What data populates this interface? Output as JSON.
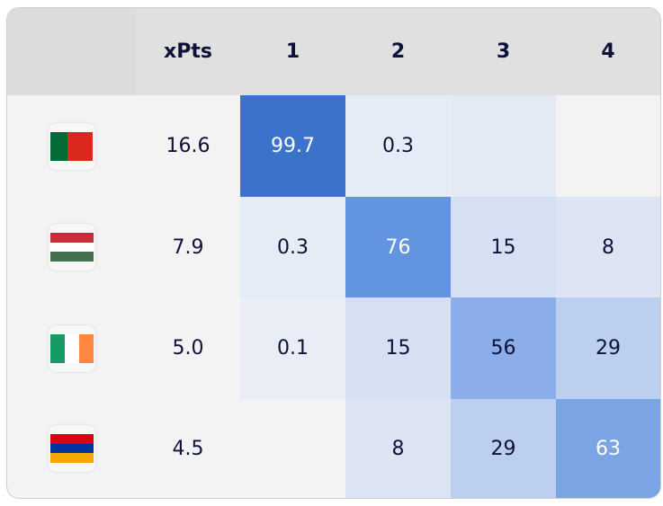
{
  "table": {
    "header": [
      "xPts",
      "1",
      "2",
      "3",
      "4"
    ],
    "rows": [
      [
        "16.6",
        "99.7",
        "0.3",
        null,
        null
      ],
      [
        "7.9",
        "0.3",
        "76",
        "15",
        "8"
      ],
      [
        "5.0",
        "0.1",
        "15",
        "56",
        "29"
      ],
      [
        "4.5",
        null,
        "8",
        "29",
        "63"
      ]
    ]
  }
}
